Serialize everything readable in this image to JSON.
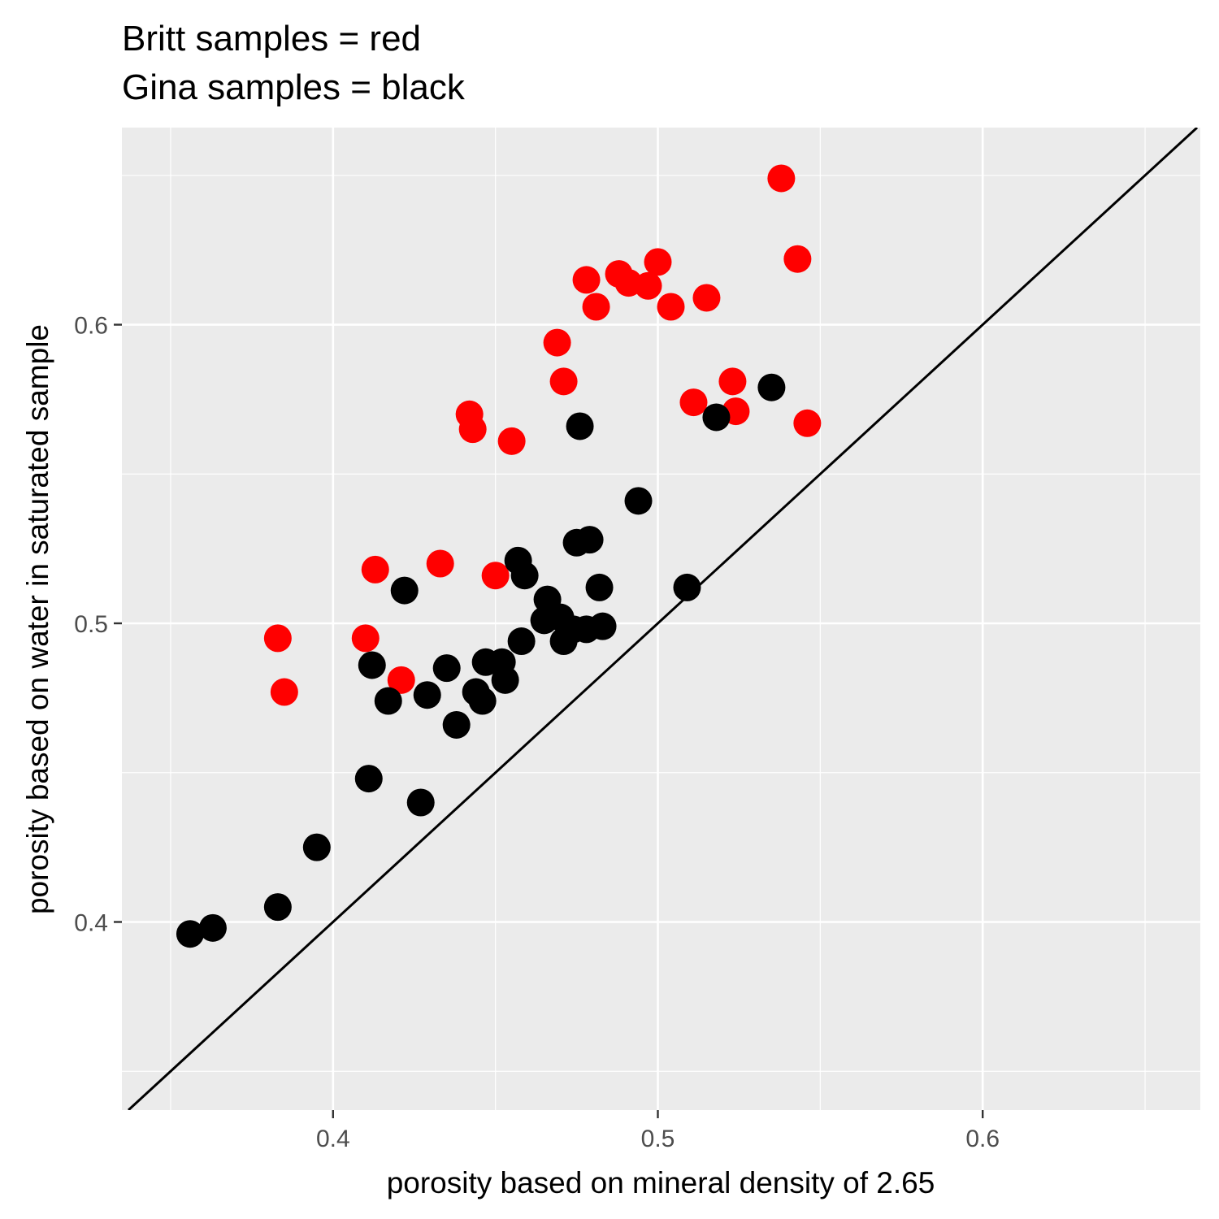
{
  "chart_data": {
    "type": "scatter",
    "title_lines": [
      "Britt samples = red",
      "Gina samples = black"
    ],
    "xlabel": "porosity based on mineral density of 2.65",
    "ylabel": "porosity based on water in saturated sample",
    "xlim": [
      0.335,
      0.667
    ],
    "ylim": [
      0.337,
      0.666
    ],
    "x_ticks": [
      0.4,
      0.5,
      0.6
    ],
    "x_tick_labels": [
      "0.4",
      "0.5",
      "0.6"
    ],
    "y_ticks": [
      0.4,
      0.5,
      0.6
    ],
    "y_tick_labels": [
      "0.4",
      "0.5",
      "0.6"
    ],
    "x_minor_ticks": [
      0.35,
      0.45,
      0.55,
      0.65
    ],
    "y_minor_ticks": [
      0.35,
      0.45,
      0.55,
      0.65
    ],
    "grid": true,
    "background_color": "#ebebeb",
    "reference_line": {
      "type": "identity",
      "slope": 1,
      "intercept": 0,
      "color": "#000000"
    },
    "series": [
      {
        "color": "#ff0000",
        "points": [
          [
            0.538,
            0.649
          ],
          [
            0.543,
            0.622
          ],
          [
            0.478,
            0.615
          ],
          [
            0.488,
            0.617
          ],
          [
            0.491,
            0.614
          ],
          [
            0.5,
            0.621
          ],
          [
            0.497,
            0.613
          ],
          [
            0.481,
            0.606
          ],
          [
            0.504,
            0.606
          ],
          [
            0.515,
            0.609
          ],
          [
            0.469,
            0.594
          ],
          [
            0.471,
            0.581
          ],
          [
            0.523,
            0.581
          ],
          [
            0.511,
            0.574
          ],
          [
            0.524,
            0.571
          ],
          [
            0.546,
            0.567
          ],
          [
            0.442,
            0.57
          ],
          [
            0.443,
            0.565
          ],
          [
            0.455,
            0.561
          ],
          [
            0.413,
            0.518
          ],
          [
            0.433,
            0.52
          ],
          [
            0.45,
            0.516
          ],
          [
            0.383,
            0.495
          ],
          [
            0.41,
            0.495
          ],
          [
            0.385,
            0.477
          ],
          [
            0.421,
            0.481
          ]
        ]
      },
      {
        "color": "#000000",
        "points": [
          [
            0.535,
            0.579
          ],
          [
            0.518,
            0.569
          ],
          [
            0.476,
            0.566
          ],
          [
            0.494,
            0.541
          ],
          [
            0.475,
            0.527
          ],
          [
            0.479,
            0.528
          ],
          [
            0.457,
            0.521
          ],
          [
            0.459,
            0.516
          ],
          [
            0.422,
            0.511
          ],
          [
            0.482,
            0.512
          ],
          [
            0.509,
            0.512
          ],
          [
            0.466,
            0.508
          ],
          [
            0.465,
            0.501
          ],
          [
            0.47,
            0.502
          ],
          [
            0.474,
            0.498
          ],
          [
            0.483,
            0.499
          ],
          [
            0.478,
            0.498
          ],
          [
            0.471,
            0.494
          ],
          [
            0.458,
            0.494
          ],
          [
            0.412,
            0.486
          ],
          [
            0.447,
            0.487
          ],
          [
            0.452,
            0.487
          ],
          [
            0.435,
            0.485
          ],
          [
            0.453,
            0.481
          ],
          [
            0.444,
            0.477
          ],
          [
            0.446,
            0.474
          ],
          [
            0.417,
            0.474
          ],
          [
            0.429,
            0.476
          ],
          [
            0.438,
            0.466
          ],
          [
            0.411,
            0.448
          ],
          [
            0.427,
            0.44
          ],
          [
            0.395,
            0.425
          ],
          [
            0.383,
            0.405
          ],
          [
            0.363,
            0.398
          ],
          [
            0.356,
            0.396
          ]
        ]
      }
    ]
  }
}
